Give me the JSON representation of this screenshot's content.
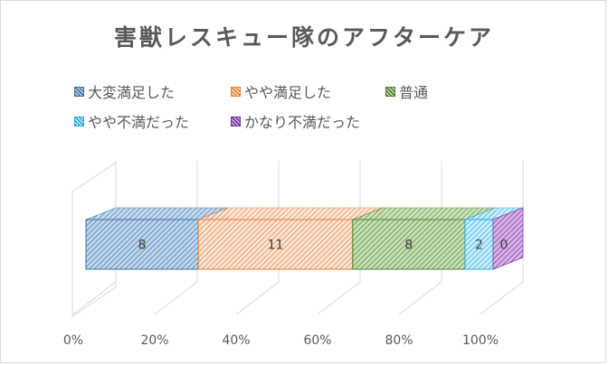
{
  "chart_data": {
    "type": "bar",
    "orientation": "horizontal",
    "stacking": "percent",
    "three_d": true,
    "title": "害獣レスキュー隊のアフターケア",
    "categories": [
      ""
    ],
    "series": [
      {
        "name": "大変満足した",
        "values": [
          8
        ],
        "color": "#41719c",
        "fill": "#bdd7ee"
      },
      {
        "name": "やや満足した",
        "values": [
          11
        ],
        "color": "#ed7d31",
        "fill": "#fbe5d6"
      },
      {
        "name": "普通",
        "values": [
          8
        ],
        "color": "#548235",
        "fill": "#c5e0b4"
      },
      {
        "name": "やや不満だった",
        "values": [
          2
        ],
        "color": "#29a8e0",
        "fill": "#c9eefc"
      },
      {
        "name": "かなり不満だった",
        "values": [
          0
        ],
        "color": "#7030a0",
        "fill": "#d9b3e6"
      }
    ],
    "xaxis_ticks": [
      "0%",
      "20%",
      "40%",
      "60%",
      "80%",
      "100%"
    ],
    "xlim": [
      0,
      100
    ],
    "legend_position": "top",
    "grid": true
  }
}
